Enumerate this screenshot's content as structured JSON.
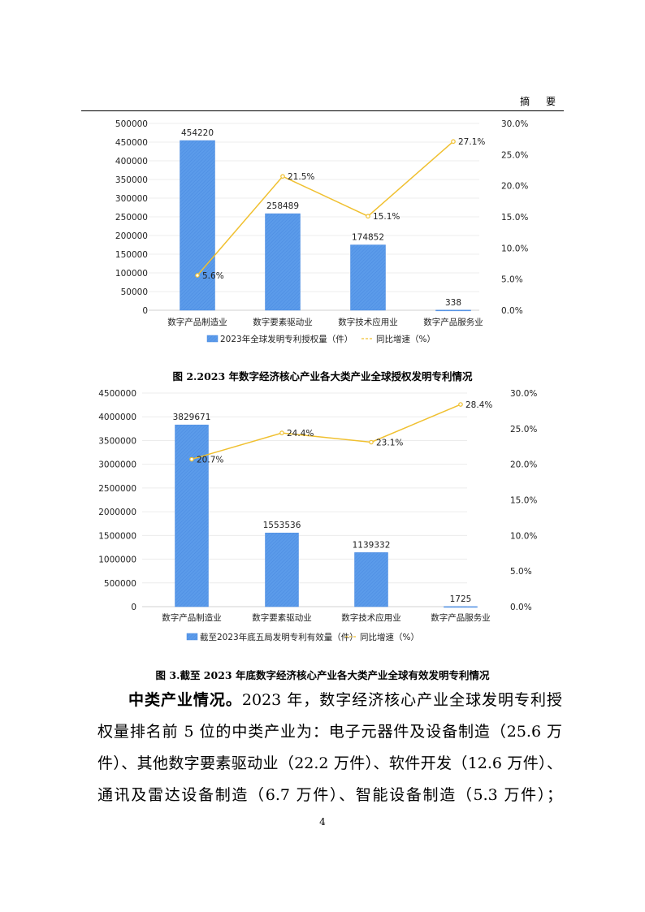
{
  "header": {
    "section": "摘 要"
  },
  "chart_data": [
    {
      "type": "bar+line",
      "categories": [
        "数字产品制造业",
        "数字要素驱动业",
        "数字技术应用业",
        "数字产品服务业"
      ],
      "series": [
        {
          "name": "2023年全球发明专利授权量（件）",
          "type": "bar",
          "axis": "left",
          "values": [
            454220,
            258489,
            174852,
            338
          ],
          "labels": [
            "454220",
            "258489",
            "174852",
            "338"
          ]
        },
        {
          "name": "同比增速（%）",
          "type": "line",
          "axis": "right",
          "values": [
            5.6,
            21.5,
            15.1,
            27.1
          ],
          "labels": [
            "5.6%",
            "21.5%",
            "15.1%",
            "27.1%"
          ]
        }
      ],
      "ylim": [
        0,
        500000
      ],
      "yticks": [
        "0",
        "50000",
        "100000",
        "150000",
        "200000",
        "250000",
        "300000",
        "350000",
        "400000",
        "450000",
        "500000"
      ],
      "y2lim": [
        0,
        30
      ],
      "y2ticks": [
        "0.0%",
        "5.0%",
        "10.0%",
        "15.0%",
        "20.0%",
        "25.0%",
        "30.0%"
      ],
      "grid": true,
      "legend": "bottom",
      "colors": {
        "bar": "#5b9bea",
        "line": "#f0c030"
      },
      "caption_prefix": "图 2.",
      "caption": "2023 年数字经济核心产业各大类产业全球授权发明专利情况"
    },
    {
      "type": "bar+line",
      "categories": [
        "数字产品制造业",
        "数字要素驱动业",
        "数字技术应用业",
        "数字产品服务业"
      ],
      "series": [
        {
          "name": "截至2023年底五局发明专利有效量（件）",
          "type": "bar",
          "axis": "left",
          "values": [
            3829671,
            1553536,
            1139332,
            1725
          ],
          "labels": [
            "3829671",
            "1553536",
            "1139332",
            "1725"
          ]
        },
        {
          "name": "同比增速（%）",
          "type": "line",
          "axis": "right",
          "values": [
            20.7,
            24.4,
            23.1,
            28.4
          ],
          "labels": [
            "20.7%",
            "24.4%",
            "23.1%",
            "28.4%"
          ]
        }
      ],
      "ylim": [
        0,
        4500000
      ],
      "yticks": [
        "0",
        "500000",
        "1000000",
        "1500000",
        "2000000",
        "2500000",
        "3000000",
        "3500000",
        "4000000",
        "4500000"
      ],
      "y2lim": [
        0,
        30
      ],
      "y2ticks": [
        "0.0%",
        "5.0%",
        "10.0%",
        "15.0%",
        "20.0%",
        "25.0%",
        "30.0%"
      ],
      "grid": true,
      "legend": "bottom",
      "colors": {
        "bar": "#5b9bea",
        "line": "#f0c030"
      },
      "caption_prefix": "图 3.",
      "caption": "截至 2023 年底数字经济核心产业各大类产业全球有效发明专利情况"
    }
  ],
  "body": {
    "lead": "中类产业情况。",
    "lines": [
      "2023 年，数字经济核心产业全球发明专利授",
      "权量排名前 5 位的中类产业为：电子元器件及设备制造（25.6 万",
      "件）、其他数字要素驱动业（22.2 万件）、软件开发（12.6 万件）、",
      "通讯及雷达设备制造（6.7 万件）、智能设备制造（5.3 万件）；"
    ]
  },
  "page_number": "4"
}
